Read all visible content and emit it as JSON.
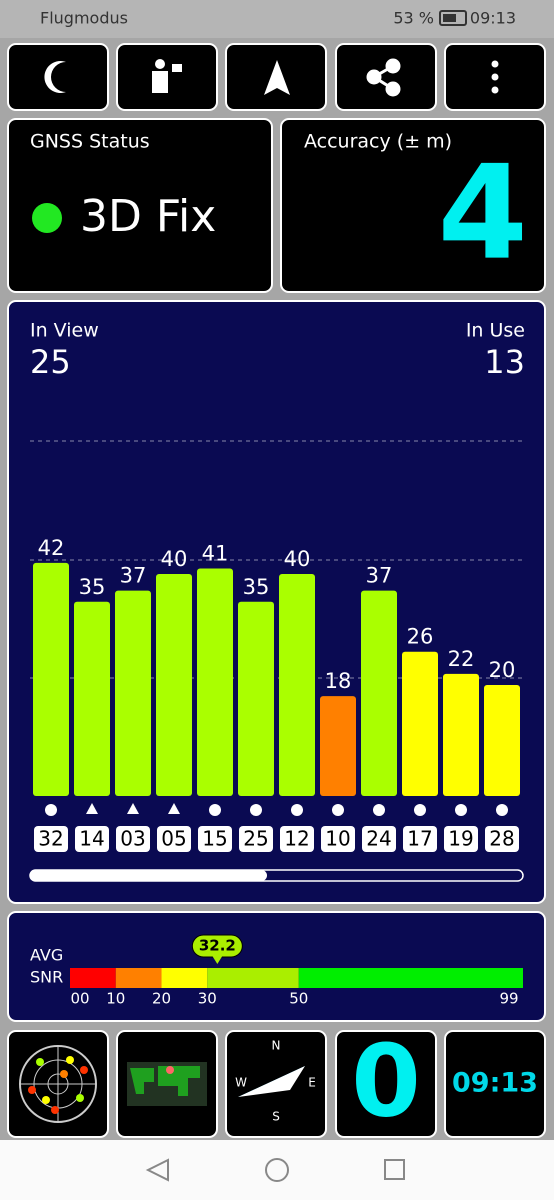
{
  "status_bar": {
    "carrier": "Flugmodus",
    "battery": "53 %",
    "time": "09:13"
  },
  "gnss_status": {
    "title": "GNSS Status",
    "fix": "3D Fix"
  },
  "accuracy": {
    "title": "Accuracy (± m)",
    "value": 4
  },
  "satellites": {
    "in_view_label": "In View",
    "in_view": 25,
    "in_use_label": "In Use",
    "in_use": 13,
    "bars": [
      {
        "id": "32",
        "snr": 42,
        "shape": "circle",
        "color": "#aaff00"
      },
      {
        "id": "14",
        "snr": 35,
        "shape": "triangle",
        "color": "#aaff00"
      },
      {
        "id": "03",
        "snr": 37,
        "shape": "triangle",
        "color": "#aaff00"
      },
      {
        "id": "05",
        "snr": 40,
        "shape": "triangle",
        "color": "#aaff00"
      },
      {
        "id": "15",
        "snr": 41,
        "shape": "circle",
        "color": "#aaff00"
      },
      {
        "id": "25",
        "snr": 35,
        "shape": "circle",
        "color": "#aaff00"
      },
      {
        "id": "12",
        "snr": 40,
        "shape": "circle",
        "color": "#aaff00"
      },
      {
        "id": "10",
        "snr": 18,
        "shape": "circle",
        "color": "#ff8000"
      },
      {
        "id": "24",
        "snr": 37,
        "shape": "circle",
        "color": "#aaff00"
      },
      {
        "id": "17",
        "snr": 26,
        "shape": "circle",
        "color": "#ffff00"
      },
      {
        "id": "19",
        "snr": 22,
        "shape": "circle",
        "color": "#ffff00"
      },
      {
        "id": "28",
        "snr": 20,
        "shape": "circle",
        "color": "#ffff00"
      }
    ]
  },
  "snr": {
    "label_top": "AVG",
    "label_bottom": "SNR",
    "avg": 32.2,
    "scale": [
      {
        "value": 0,
        "label": "00",
        "color": "#ff0000"
      },
      {
        "value": 10,
        "label": "10",
        "color": "#ff8000"
      },
      {
        "value": 20,
        "label": "20",
        "color": "#ffff00"
      },
      {
        "value": 30,
        "label": "30",
        "color": "#aaee00"
      },
      {
        "value": 50,
        "label": "50",
        "color": "#00ee00"
      },
      99
    ]
  },
  "tiles": {
    "compass": [
      "N",
      "E",
      "S",
      "W"
    ],
    "count": 0,
    "clock": "09:13"
  }
}
